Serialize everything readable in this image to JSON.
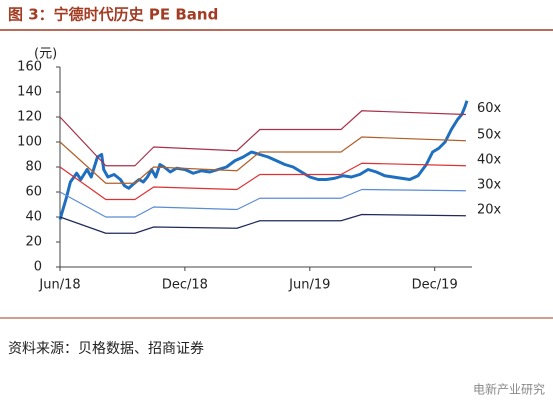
{
  "chart_data": {
    "type": "line",
    "title": "图 3：宁德时代历史 PE Band",
    "y_axis_label": "(元)",
    "source": "资料来源：贝格数据、招商证券",
    "watermark": "电新产业研究",
    "xlim": [
      0,
      19.6
    ],
    "xticks": [
      {
        "value": 0,
        "label": "Jun/18"
      },
      {
        "value": 6,
        "label": "Dec/18"
      },
      {
        "value": 12,
        "label": "Jun/19"
      },
      {
        "value": 18,
        "label": "Dec/19"
      }
    ],
    "ylim": [
      0,
      160
    ],
    "yticks": [
      0,
      20,
      40,
      60,
      80,
      100,
      120,
      140,
      160
    ],
    "series": [
      {
        "color": "#1f6fc0",
        "x": [
          0,
          0.3,
          0.5,
          0.8,
          1.0,
          1.3,
          1.5,
          1.8,
          2.0,
          2.1,
          2.3,
          2.6,
          2.9,
          3.1,
          3.3,
          3.5,
          3.8,
          4.0,
          4.2,
          4.4,
          4.6,
          4.8,
          5.0,
          5.3,
          5.6,
          6.0,
          6.4,
          6.8,
          7.2,
          7.6,
          8.0,
          8.4,
          8.8,
          9.2,
          9.6,
          10.0,
          10.4,
          10.8,
          11.2,
          11.6,
          12.0,
          12.4,
          12.8,
          13.2,
          13.6,
          14.0,
          14.4,
          14.8,
          15.2,
          15.6,
          16.0,
          16.4,
          16.8,
          17.2,
          17.6,
          17.9,
          18.2,
          18.5,
          18.8,
          19.1,
          19.3,
          19.45,
          19.55
        ],
        "values": [
          38,
          55,
          68,
          75,
          70,
          78,
          72,
          88,
          90,
          78,
          72,
          74,
          70,
          65,
          63,
          66,
          70,
          68,
          72,
          78,
          72,
          82,
          80,
          76,
          79,
          78,
          75,
          77,
          76,
          78,
          80,
          85,
          88,
          92,
          90,
          88,
          85,
          82,
          80,
          76,
          72,
          70,
          70,
          71,
          73,
          72,
          74,
          78,
          76,
          73,
          72,
          71,
          70,
          73,
          82,
          92,
          95,
          100,
          110,
          118,
          122,
          128,
          133
        ]
      },
      {
        "name": "60x",
        "color": "#a8324a",
        "x": [
          0,
          2.2,
          3.6,
          4.5,
          8.5,
          9.6,
          13.5,
          14.5,
          19.5
        ],
        "values": [
          120,
          81,
          81,
          96,
          93,
          110,
          110,
          125,
          122
        ]
      },
      {
        "name": "50x",
        "color": "#b0602a",
        "x": [
          0,
          2.2,
          3.6,
          4.5,
          8.5,
          9.6,
          13.5,
          14.5,
          19.5
        ],
        "values": [
          100,
          67,
          67,
          80,
          77,
          92,
          92,
          104,
          101
        ]
      },
      {
        "name": "40x",
        "color": "#e03030",
        "x": [
          0,
          2.2,
          3.6,
          4.5,
          8.5,
          9.6,
          13.5,
          14.5,
          19.5
        ],
        "values": [
          80,
          54,
          54,
          64,
          62,
          74,
          74,
          83,
          81
        ]
      },
      {
        "name": "30x",
        "color": "#5b8bd6",
        "x": [
          0,
          2.2,
          3.6,
          4.5,
          8.5,
          9.6,
          13.5,
          14.5,
          19.5
        ],
        "values": [
          60,
          40,
          40,
          48,
          46,
          55,
          55,
          62,
          61
        ]
      },
      {
        "name": "20x",
        "color": "#1f2a5a",
        "x": [
          0,
          2.2,
          3.6,
          4.5,
          8.5,
          9.6,
          13.5,
          14.5,
          19.5
        ],
        "values": [
          40,
          27,
          27,
          32,
          31,
          37,
          37,
          42,
          41
        ]
      }
    ]
  }
}
